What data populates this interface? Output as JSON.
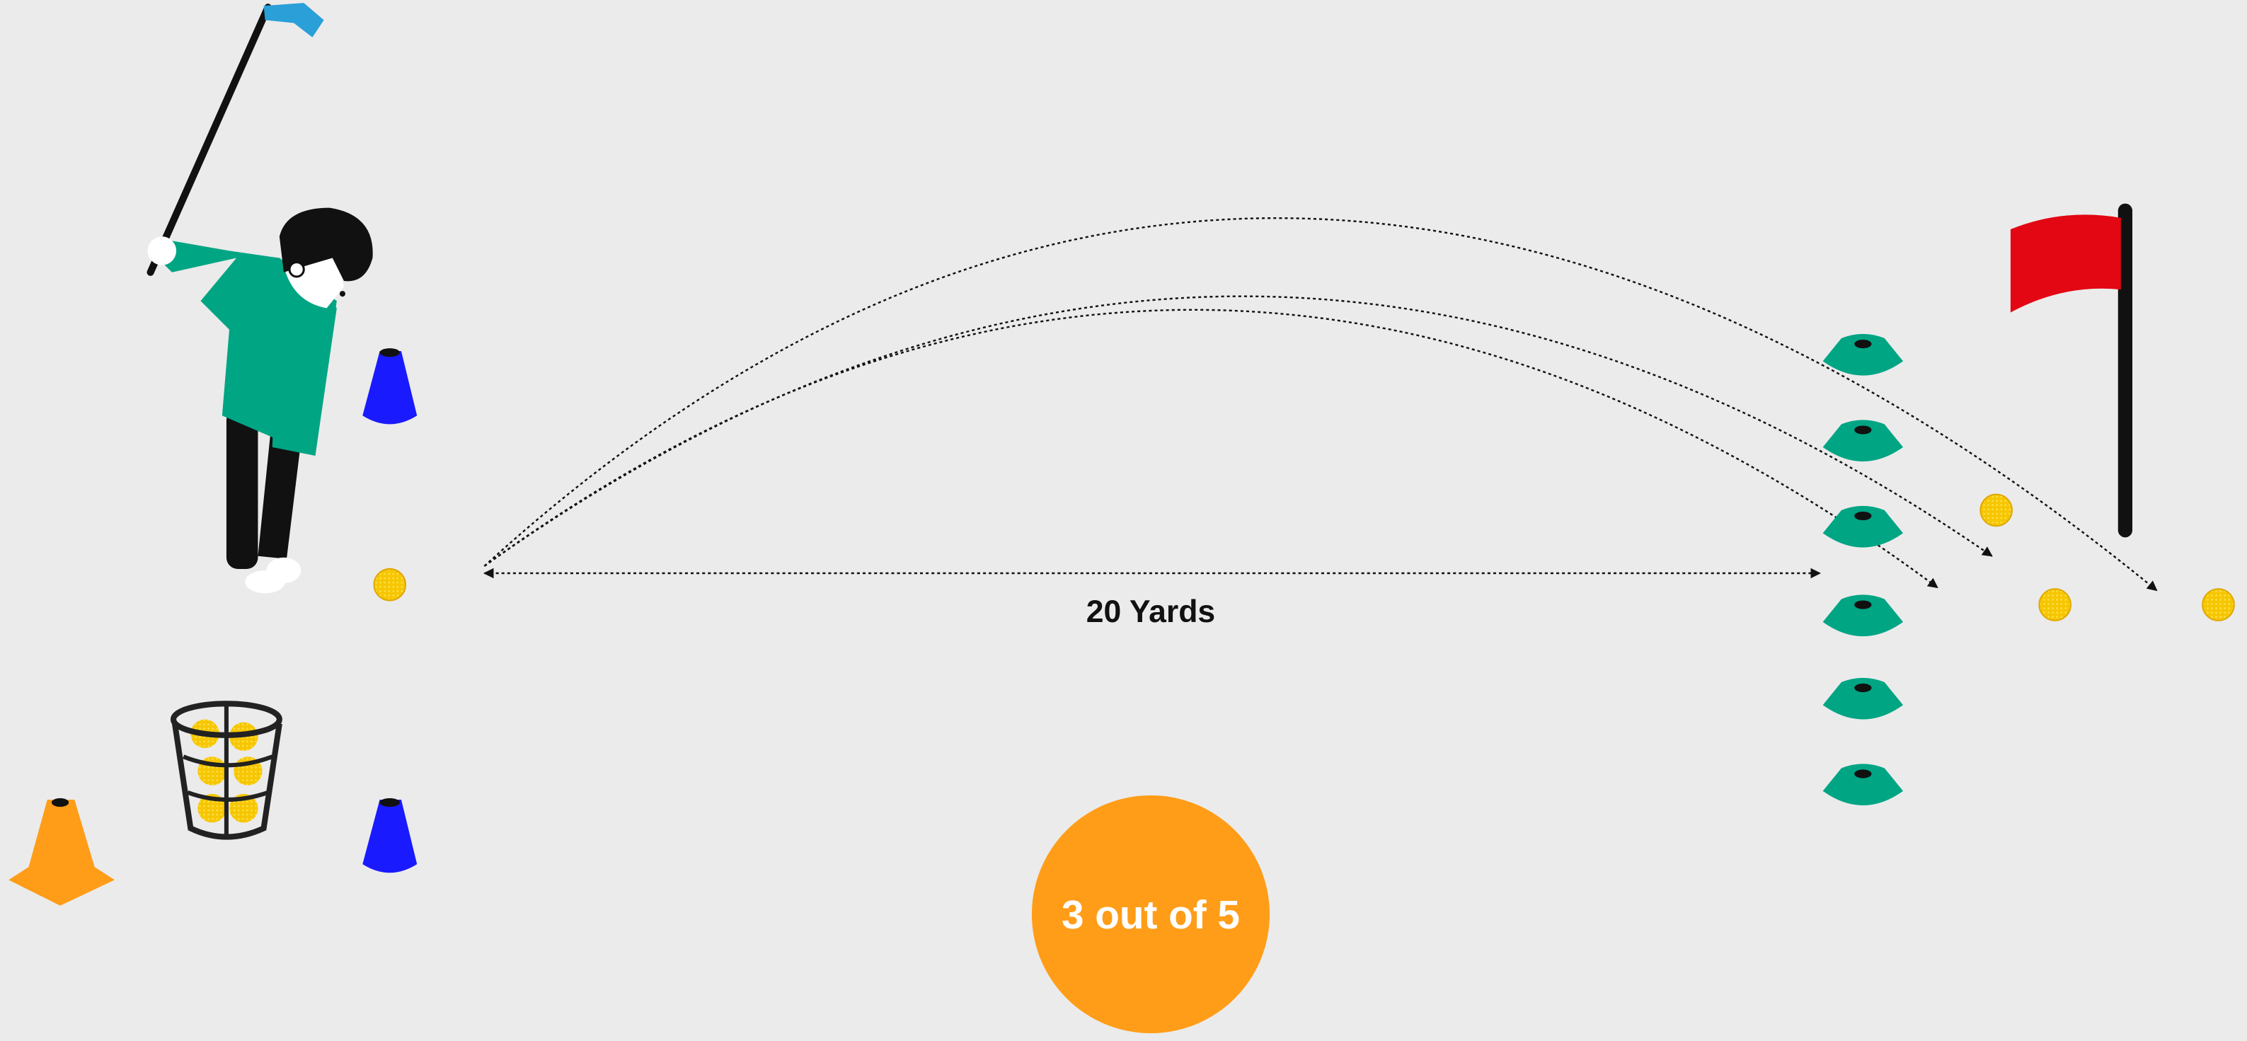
{
  "distance_label": "20 Yards",
  "score": "3 out of 5"
}
